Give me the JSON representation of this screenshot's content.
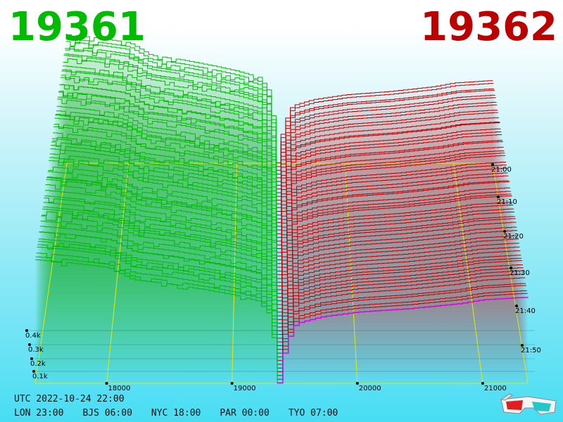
{
  "header": {
    "left_value": "19361",
    "right_value": "19362",
    "left_color": "#00bb00",
    "right_color": "#bb0000"
  },
  "footer": {
    "utc_label": "UTC",
    "utc_datetime": "2022-10-24 22:00",
    "zones": [
      {
        "code": "LON",
        "time": "23:00"
      },
      {
        "code": "BJS",
        "time": "06:00"
      },
      {
        "code": "NYC",
        "time": "18:00"
      },
      {
        "code": "PAR",
        "time": "00:00"
      },
      {
        "code": "TYO",
        "time": "07:00"
      }
    ]
  },
  "icons": {
    "glasses": "3d-glasses-icon"
  },
  "chart_data": {
    "type": "area",
    "title": "",
    "x_axis": {
      "ticks": [
        18000,
        19000,
        20000,
        21000
      ],
      "tick_labels": [
        "18000",
        "19000",
        "20000",
        "21000"
      ],
      "range": [
        17430,
        21360
      ]
    },
    "y_axis": {
      "ticks": [
        100,
        200,
        300,
        400
      ],
      "tick_labels": [
        "0.1k",
        "0.2k",
        "0.3k",
        "0.4k"
      ],
      "range": [
        0,
        640
      ]
    },
    "time_axis": {
      "ticks": [
        "21:00",
        "21:10",
        "21:20",
        "21:30",
        "21:40",
        "21:50"
      ]
    },
    "mid_price": 19361.5,
    "snapshot_count": 60,
    "bid_color": "#00bb00",
    "ask_color": "#bb0000",
    "highlight_color": "#dd00dd",
    "grid_color": "#e8e800",
    "bid_snapshot": [
      {
        "price": 17430,
        "cum_volume": 405
      },
      {
        "price": 17700,
        "cum_volume": 395
      },
      {
        "price": 18000,
        "cum_volume": 380
      },
      {
        "price": 18200,
        "cum_volume": 340
      },
      {
        "price": 18500,
        "cum_volume": 325
      },
      {
        "price": 18800,
        "cum_volume": 305
      },
      {
        "price": 19000,
        "cum_volume": 290
      },
      {
        "price": 19200,
        "cum_volume": 270
      },
      {
        "price": 19300,
        "cum_volume": 220
      },
      {
        "price": 19361,
        "cum_volume": 0
      }
    ],
    "ask_snapshot": [
      {
        "price": 19362,
        "cum_volume": 0
      },
      {
        "price": 19420,
        "cum_volume": 120
      },
      {
        "price": 19500,
        "cum_volume": 180
      },
      {
        "price": 19700,
        "cum_volume": 200
      },
      {
        "price": 20000,
        "cum_volume": 215
      },
      {
        "price": 20400,
        "cum_volume": 225
      },
      {
        "price": 20800,
        "cum_volume": 240
      },
      {
        "price": 21000,
        "cum_volume": 252
      },
      {
        "price": 21360,
        "cum_volume": 260
      }
    ]
  }
}
